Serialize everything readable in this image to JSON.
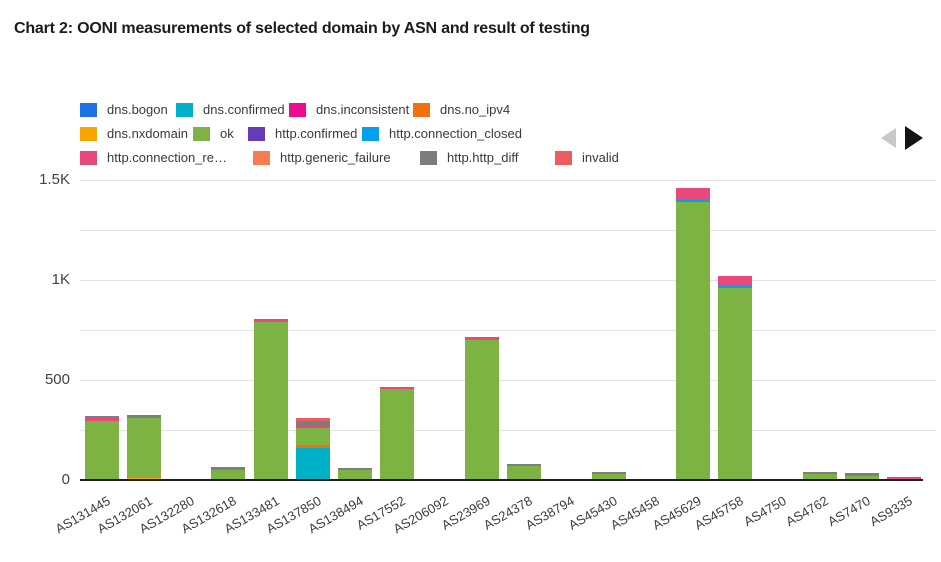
{
  "title": "Chart 2: OONI measurements of selected domain by ASN and result of testing",
  "legend": {
    "prev_icon": "left-triangle",
    "next_icon": "right-triangle"
  },
  "chart_data": {
    "type": "bar",
    "stacked": true,
    "title": "Chart 2: OONI measurements of selected domain by ASN and result of testing",
    "xlabel": "",
    "ylabel": "",
    "ylim": [
      0,
      1500
    ],
    "grid": true,
    "legend_position": "top",
    "yticks": [
      {
        "value": 0,
        "label": "0"
      },
      {
        "value": 500,
        "label": "500"
      },
      {
        "value": 1000,
        "label": "1K"
      },
      {
        "value": 1500,
        "label": "1.5K"
      }
    ],
    "gridline_values": [
      250,
      500,
      750,
      1000,
      1250,
      1500
    ],
    "series": [
      {
        "name": "dns.bogon",
        "legend_label": "dns.bogon",
        "color": "#1a73e8"
      },
      {
        "name": "dns.confirmed",
        "legend_label": "dns.confirmed",
        "color": "#00b2c7"
      },
      {
        "name": "dns.inconsistent",
        "legend_label": "dns.inconsistent",
        "color": "#ec0c8d"
      },
      {
        "name": "dns.no_ipv4",
        "legend_label": "dns.no_ipv4",
        "color": "#f4700d"
      },
      {
        "name": "dns.nxdomain",
        "legend_label": "dns.nxdomain",
        "color": "#f9a602"
      },
      {
        "name": "ok",
        "legend_label": "ok",
        "color": "#7cb342"
      },
      {
        "name": "http.confirmed",
        "legend_label": "http.confirmed",
        "color": "#673ab7"
      },
      {
        "name": "http.connection_closed",
        "legend_label": "http.connection_closed",
        "color": "#03a2ee"
      },
      {
        "name": "http.connection_reset",
        "legend_label": "http.connection_re…",
        "color": "#e8487c"
      },
      {
        "name": "http.generic_failure",
        "legend_label": "http.generic_failure",
        "color": "#fb7b50"
      },
      {
        "name": "http.http_diff",
        "legend_label": "http.http_diff",
        "color": "#7d7d7d"
      },
      {
        "name": "invalid",
        "legend_label": "invalid",
        "color": "#ef5c60"
      }
    ],
    "categories": [
      "AS131445",
      "AS132061",
      "AS132280",
      "AS132618",
      "AS133481",
      "AS137850",
      "AS138494",
      "AS17552",
      "AS206092",
      "AS23969",
      "AS24378",
      "AS38794",
      "AS45430",
      "AS45458",
      "AS45629",
      "AS45758",
      "AS4750",
      "AS4762",
      "AS7470",
      "AS9335"
    ],
    "bars": [
      {
        "category": "AS131445",
        "segments": [
          [
            "ok",
            295
          ],
          [
            "http.connection_reset",
            18
          ],
          [
            "http.http_diff",
            8
          ]
        ]
      },
      {
        "category": "AS132061",
        "segments": [
          [
            "dns.nxdomain",
            8
          ],
          [
            "ok",
            300
          ],
          [
            "http.connection_reset",
            5
          ],
          [
            "http.http_diff",
            10
          ]
        ]
      },
      {
        "category": "AS132280",
        "segments": [
          [
            "ok",
            2
          ]
        ]
      },
      {
        "category": "AS132618",
        "segments": [
          [
            "ok",
            52
          ],
          [
            "http.connection_reset",
            5
          ],
          [
            "http.http_diff",
            6
          ]
        ]
      },
      {
        "category": "AS133481",
        "segments": [
          [
            "ok",
            790
          ],
          [
            "http.connection_reset",
            10
          ],
          [
            "http.http_diff",
            5
          ]
        ]
      },
      {
        "category": "AS137850",
        "segments": [
          [
            "dns.confirmed",
            158
          ],
          [
            "dns.no_ipv4",
            15
          ],
          [
            "ok",
            85
          ],
          [
            "http.connection_reset",
            12
          ],
          [
            "http.http_diff",
            25
          ],
          [
            "invalid",
            13
          ]
        ]
      },
      {
        "category": "AS138494",
        "segments": [
          [
            "ok",
            50
          ],
          [
            "http.connection_reset",
            8
          ],
          [
            "http.http_diff",
            4
          ]
        ]
      },
      {
        "category": "AS17552",
        "segments": [
          [
            "ok",
            455
          ],
          [
            "http.connection_reset",
            8
          ],
          [
            "http.http_diff",
            4
          ]
        ]
      },
      {
        "category": "AS206092",
        "segments": [
          [
            "ok",
            2
          ]
        ]
      },
      {
        "category": "AS23969",
        "segments": [
          [
            "ok",
            700
          ],
          [
            "http.connection_reset",
            8
          ],
          [
            "http.http_diff",
            5
          ]
        ]
      },
      {
        "category": "AS24378",
        "segments": [
          [
            "ok",
            68
          ],
          [
            "http.connection_reset",
            6
          ],
          [
            "http.http_diff",
            6
          ]
        ]
      },
      {
        "category": "AS38794",
        "segments": [
          [
            "ok",
            2
          ]
        ]
      },
      {
        "category": "AS45430",
        "segments": [
          [
            "ok",
            28
          ],
          [
            "http.connection_reset",
            6
          ],
          [
            "http.http_diff",
            6
          ]
        ]
      },
      {
        "category": "AS45458",
        "segments": [
          [
            "ok",
            1
          ]
        ]
      },
      {
        "category": "AS45629",
        "segments": [
          [
            "ok",
            1390
          ],
          [
            "http.connection_closed",
            10
          ],
          [
            "http.connection_reset",
            60
          ]
        ]
      },
      {
        "category": "AS45758",
        "segments": [
          [
            "ok",
            960
          ],
          [
            "http.connection_closed",
            10
          ],
          [
            "http.connection_reset",
            50
          ]
        ]
      },
      {
        "category": "AS4750",
        "segments": [
          [
            "ok",
            1
          ]
        ]
      },
      {
        "category": "AS4762",
        "segments": [
          [
            "ok",
            30
          ],
          [
            "http.http_diff",
            10
          ]
        ]
      },
      {
        "category": "AS7470",
        "segments": [
          [
            "ok",
            20
          ],
          [
            "http.connection_reset",
            5
          ],
          [
            "http.http_diff",
            8
          ]
        ]
      },
      {
        "category": "AS9335",
        "segments": [
          [
            "ok",
            4
          ],
          [
            "http.connection_reset",
            5
          ],
          [
            "http.http_diff",
            6
          ]
        ]
      }
    ]
  }
}
